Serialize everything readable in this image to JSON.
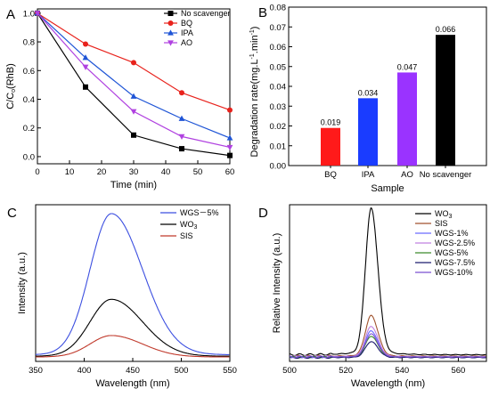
{
  "chart_data": [
    {
      "panel": "A",
      "type": "line",
      "xlabel": "Time (min)",
      "ylabel": {
        "main": "C/C",
        "sub": "o",
        "suffix": "(RhB)"
      },
      "xlim": [
        0,
        60
      ],
      "ylim": [
        -0.05,
        1.03
      ],
      "xticks": [
        "0",
        "10",
        "20",
        "30",
        "40",
        "50",
        "60"
      ],
      "yticks": [
        "0.0",
        "0.2",
        "0.4",
        "0.6",
        "0.8",
        "1.0"
      ],
      "x": [
        0,
        15,
        30,
        45,
        60
      ],
      "series": [
        {
          "name": "No scavenger",
          "color": "#000000",
          "marker": "square",
          "values": [
            1.0,
            0.485,
            0.15,
            0.055,
            0.008
          ]
        },
        {
          "name": "BQ",
          "color": "#e8221c",
          "marker": "circle",
          "values": [
            1.0,
            0.785,
            0.655,
            0.445,
            0.325
          ]
        },
        {
          "name": "IPA",
          "color": "#1f55d6",
          "marker": "triangle-up",
          "values": [
            1.0,
            0.69,
            0.42,
            0.265,
            0.13
          ]
        },
        {
          "name": "AO",
          "color": "#b041e0",
          "marker": "triangle-down",
          "values": [
            1.0,
            0.625,
            0.315,
            0.14,
            0.065
          ]
        }
      ],
      "legend_position": "top-right"
    },
    {
      "panel": "B",
      "type": "bar",
      "xlabel": "Sample",
      "ylabel": {
        "main": "Degradation rate(mg.L",
        "sup1": "-1",
        "mid": ".min",
        "sup2": "-1",
        "end": ")"
      },
      "ylim": [
        0,
        0.08
      ],
      "yticks": [
        "0.00",
        "0.01",
        "0.02",
        "0.03",
        "0.04",
        "0.05",
        "0.06",
        "0.07",
        "0.08"
      ],
      "categories": [
        "BQ",
        "IPA",
        "AO",
        "No scavenger"
      ],
      "values": [
        0.019,
        0.034,
        0.047,
        0.066
      ],
      "value_labels": [
        "0.019",
        "0.034",
        "0.047",
        "0.066"
      ],
      "colors": [
        "#ff1a1a",
        "#1a3cff",
        "#9a33ff",
        "#000000"
      ]
    },
    {
      "panel": "C",
      "type": "line",
      "xlabel": "Wavelength (nm)",
      "ylabel": "Intensity (a.u.)",
      "xlim": [
        350,
        550
      ],
      "xticks": [
        "350",
        "400",
        "450",
        "500",
        "550"
      ],
      "peak_x": 428,
      "series": [
        {
          "name": "WGS - 5%",
          "label": "WGS－5%",
          "color": "#3c4fe0",
          "peak": 1.0,
          "baseline": 0.045
        },
        {
          "name": "WO3",
          "label_main": "WO",
          "label_sub": "3",
          "color": "#000000",
          "peak": 0.42,
          "baseline": 0.035
        },
        {
          "name": "SIS",
          "label": "SIS",
          "color": "#c0392b",
          "peak": 0.175,
          "baseline": 0.03
        }
      ],
      "legend_position": "top-right"
    },
    {
      "panel": "D",
      "type": "line",
      "xlabel": "Wavelength (nm)",
      "ylabel": "Relative Intensity (a.u.)",
      "xlim": [
        500,
        570
      ],
      "xticks": [
        "500",
        "520",
        "540",
        "560"
      ],
      "peak_x": 529,
      "series": [
        {
          "name": "WO3",
          "label_main": "WO",
          "label_sub": "3",
          "color": "#000000",
          "peak": 1.0,
          "baseline": 0.045
        },
        {
          "name": "SIS",
          "label": "SIS",
          "color": "#a0522d",
          "peak": 0.3,
          "baseline": 0.035
        },
        {
          "name": "WGS-1%",
          "label": "WGS-1%",
          "color": "#6b6bff",
          "peak": 0.2,
          "baseline": 0.03
        },
        {
          "name": "WGS-2.5%",
          "label": "WGS-2.5%",
          "color": "#c080e0",
          "peak": 0.23,
          "baseline": 0.032
        },
        {
          "name": "WGS-5%",
          "label": "WGS-5%",
          "color": "#3c8a2a",
          "peak": 0.165,
          "baseline": 0.028
        },
        {
          "name": "WGS-7.5%",
          "label": "WGS-7.5%",
          "color": "#1c1c6e",
          "peak": 0.13,
          "baseline": 0.026
        },
        {
          "name": "WGS-10%",
          "label": "WGS-10%",
          "color": "#7a4fd0",
          "peak": 0.18,
          "baseline": 0.03
        }
      ],
      "legend_position": "top-right"
    }
  ]
}
